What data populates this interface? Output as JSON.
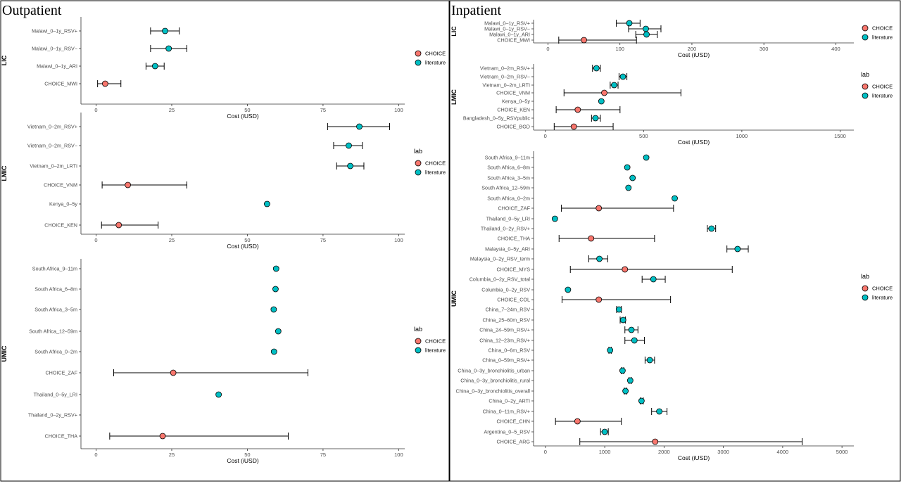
{
  "colors": {
    "CHOICE": "#F8766D",
    "literature": "#00BFC4",
    "axis": "#333333",
    "frame": "#000000"
  },
  "panels": [
    {
      "id": "outpatient",
      "title": "Outpatient",
      "charts": [
        {
          "type": "scatter",
          "strip": "LIC",
          "xlabel": "Cost (iUSD)",
          "xlim": [
            -5,
            102
          ],
          "xticks": [
            0,
            25,
            50,
            75,
            100
          ],
          "legend": {
            "title": "",
            "placement": "right",
            "entries": [
              "CHOICE",
              "literature"
            ]
          },
          "points": [
            {
              "label": "Malawi_0–1y_RSV+",
              "value": 22.8,
              "lo": 18,
              "hi": 27.5,
              "group": "literature"
            },
            {
              "label": "Malawi_0–1y_RSV−",
              "value": 24,
              "lo": 18,
              "hi": 30,
              "group": "literature"
            },
            {
              "label": "Malawi_0–1y_ARI",
              "value": 19.5,
              "lo": 16.5,
              "hi": 22.5,
              "group": "literature"
            },
            {
              "label": "CHOICE_MWI",
              "value": 3,
              "lo": 0.5,
              "hi": 8.2,
              "group": "CHOICE"
            }
          ]
        },
        {
          "type": "scatter",
          "strip": "LMIC",
          "xlabel": "Cost (iUSD)",
          "xlim": [
            -5,
            102
          ],
          "xticks": [
            0,
            25,
            50,
            75,
            100
          ],
          "legend": {
            "title": "lab",
            "placement": "right",
            "entries": [
              "CHOICE",
              "literature"
            ]
          },
          "points": [
            {
              "label": "Vietnam_0–2m_RSV+",
              "value": 87,
              "lo": 76.5,
              "hi": 97,
              "group": "literature"
            },
            {
              "label": "Vietnam_0–2m_RSV−",
              "value": 83.5,
              "lo": 78.5,
              "hi": 88,
              "group": "literature"
            },
            {
              "label": "Vietnam_0–2m_LRTI",
              "value": 84,
              "lo": 79.5,
              "hi": 88.5,
              "group": "literature"
            },
            {
              "label": "CHOICE_VNM",
              "value": 10.5,
              "lo": 2,
              "hi": 30,
              "group": "CHOICE"
            },
            {
              "label": "Kenya_0–5y",
              "value": 56.5,
              "lo": null,
              "hi": null,
              "group": "literature"
            },
            {
              "label": "CHOICE_KEN",
              "value": 7.5,
              "lo": 1.8,
              "hi": 20.5,
              "group": "CHOICE"
            }
          ]
        },
        {
          "type": "scatter",
          "strip": "UMIC",
          "xlabel": "Cost (iUSD)",
          "xlim": [
            -5,
            102
          ],
          "xticks": [
            0,
            25,
            50,
            75,
            100
          ],
          "legend": {
            "title": "lab",
            "placement": "right",
            "entries": [
              "CHOICE",
              "literature"
            ]
          },
          "points": [
            {
              "label": "South Africa_9–11m",
              "value": 59.5,
              "lo": null,
              "hi": null,
              "group": "literature"
            },
            {
              "label": "South Africa_6–8m",
              "value": 59.3,
              "lo": null,
              "hi": null,
              "group": "literature"
            },
            {
              "label": "South Africa_3–5m",
              "value": 58.7,
              "lo": null,
              "hi": null,
              "group": "literature"
            },
            {
              "label": "South Africa_12–59m",
              "value": 60.2,
              "lo": null,
              "hi": null,
              "group": "literature"
            },
            {
              "label": "South Africa_0–2m",
              "value": 58.8,
              "lo": null,
              "hi": null,
              "group": "literature"
            },
            {
              "label": "CHOICE_ZAF",
              "value": 25.5,
              "lo": 5.8,
              "hi": 70,
              "group": "CHOICE"
            },
            {
              "label": "Thailand_0–5y_LRI",
              "value": 40.5,
              "lo": null,
              "hi": null,
              "group": "literature"
            },
            {
              "label": "Thailand_0–2y_RSV+",
              "value": null,
              "lo": null,
              "hi": null,
              "group": "literature"
            },
            {
              "label": "CHOICE_THA",
              "value": 22,
              "lo": 4.5,
              "hi": 63.5,
              "group": "CHOICE"
            }
          ]
        }
      ]
    },
    {
      "id": "inpatient",
      "title": "Inpatient",
      "charts": [
        {
          "type": "scatter",
          "strip": "LIC",
          "xlabel": "Cost (iUSD)",
          "xlim": [
            -20,
            425
          ],
          "xticks": [
            0,
            100,
            200,
            300,
            400
          ],
          "legend": {
            "title": "",
            "placement": "right",
            "entries": [
              "CHOICE",
              "literature"
            ]
          },
          "points": [
            {
              "label": "Malawi_0–1y_RSV+",
              "value": 113,
              "lo": 95,
              "hi": 128,
              "group": "literature"
            },
            {
              "label": "Malawi_0–1y_RSV−",
              "value": 136,
              "lo": 112,
              "hi": 157,
              "group": "literature"
            },
            {
              "label": "Malawi_0–1y_ARI",
              "value": 137,
              "lo": 122,
              "hi": 152,
              "group": "literature"
            },
            {
              "label": "CHOICE_MWI",
              "value": 50,
              "lo": 15,
              "hi": 123,
              "group": "CHOICE"
            }
          ]
        },
        {
          "type": "scatter",
          "strip": "LMIC",
          "xlabel": "Cost (iUSD)",
          "xlim": [
            -60,
            1570
          ],
          "xticks": [
            0,
            500,
            1000,
            1500
          ],
          "legend": {
            "title": "lab",
            "placement": "right",
            "entries": [
              "CHOICE",
              "literature"
            ]
          },
          "points": [
            {
              "label": "Vietnam_0–2m_RSV+",
              "value": 260,
              "lo": 240,
              "hi": 280,
              "group": "literature"
            },
            {
              "label": "Vietnam_0–2m_RSV−",
              "value": 395,
              "lo": 375,
              "hi": 415,
              "group": "literature"
            },
            {
              "label": "Vietnam_0–2m_LRTI",
              "value": 350,
              "lo": 330,
              "hi": 370,
              "group": "literature"
            },
            {
              "label": "CHOICE_VNM",
              "value": 300,
              "lo": 95,
              "hi": 690,
              "group": "CHOICE"
            },
            {
              "label": "Kenya_0–5y",
              "value": 285,
              "lo": null,
              "hi": null,
              "group": "literature"
            },
            {
              "label": "CHOICE_KEN",
              "value": 165,
              "lo": 55,
              "hi": 380,
              "group": "CHOICE"
            },
            {
              "label": "Bangladesh_0–5y_RSVpublic",
              "value": 255,
              "lo": 235,
              "hi": 280,
              "group": "literature"
            },
            {
              "label": "CHOICE_BGD",
              "value": 145,
              "lo": 45,
              "hi": 345,
              "group": "CHOICE"
            }
          ]
        },
        {
          "type": "scatter",
          "strip": "UMIC",
          "xlabel": "Cost (iUSD)",
          "xlim": [
            -200,
            5200
          ],
          "xticks": [
            0,
            1000,
            2000,
            3000,
            4000,
            5000
          ],
          "legend": {
            "title": "lab",
            "placement": "right",
            "entries": [
              "CHOICE",
              "literature"
            ]
          },
          "points": [
            {
              "label": "South Africa_9–11m",
              "value": 1700,
              "lo": null,
              "hi": null,
              "group": "literature"
            },
            {
              "label": "South Africa_6–8m",
              "value": 1380,
              "lo": null,
              "hi": null,
              "group": "literature"
            },
            {
              "label": "South Africa_3–5m",
              "value": 1470,
              "lo": null,
              "hi": null,
              "group": "literature"
            },
            {
              "label": "South Africa_12–59m",
              "value": 1400,
              "lo": null,
              "hi": null,
              "group": "literature"
            },
            {
              "label": "South Africa_0–2m",
              "value": 2180,
              "lo": null,
              "hi": null,
              "group": "literature"
            },
            {
              "label": "CHOICE_ZAF",
              "value": 900,
              "lo": 270,
              "hi": 2160,
              "group": "CHOICE"
            },
            {
              "label": "Thailand_0–5y_LRI",
              "value": 160,
              "lo": null,
              "hi": null,
              "group": "literature"
            },
            {
              "label": "Thailand_0–2y_RSV+",
              "value": 2800,
              "lo": 2730,
              "hi": 2870,
              "group": "literature"
            },
            {
              "label": "CHOICE_THA",
              "value": 770,
              "lo": 230,
              "hi": 1840,
              "group": "CHOICE"
            },
            {
              "label": "Malaysia_0–5y_ARI",
              "value": 3240,
              "lo": 3060,
              "hi": 3420,
              "group": "literature"
            },
            {
              "label": "Malaysia_0–2y_RSV_term",
              "value": 910,
              "lo": 730,
              "hi": 1050,
              "group": "literature"
            },
            {
              "label": "CHOICE_MYS",
              "value": 1340,
              "lo": 420,
              "hi": 3150,
              "group": "CHOICE"
            },
            {
              "label": "Columbia_0–2y_RSV_total",
              "value": 1820,
              "lo": 1630,
              "hi": 2020,
              "group": "literature"
            },
            {
              "label": "Columbia_0–2y_RSV",
              "value": 380,
              "lo": null,
              "hi": null,
              "group": "literature"
            },
            {
              "label": "CHOICE_COL",
              "value": 900,
              "lo": 280,
              "hi": 2110,
              "group": "CHOICE"
            },
            {
              "label": "China_7–24m_RSV",
              "value": 1240,
              "lo": 1200,
              "hi": 1280,
              "group": "literature"
            },
            {
              "label": "China_25–60m_RSV",
              "value": 1310,
              "lo": 1260,
              "hi": 1350,
              "group": "literature"
            },
            {
              "label": "China_24–59m_RSV+",
              "value": 1450,
              "lo": 1340,
              "hi": 1560,
              "group": "literature"
            },
            {
              "label": "China_12–23m_RSV+",
              "value": 1500,
              "lo": 1340,
              "hi": 1670,
              "group": "literature"
            },
            {
              "label": "China_0–6m_RSV",
              "value": 1090,
              "lo": 1070,
              "hi": 1110,
              "group": "literature"
            },
            {
              "label": "China_0–59m_RSV+",
              "value": 1760,
              "lo": 1680,
              "hi": 1840,
              "group": "literature"
            },
            {
              "label": "China_0–3y_bronchiolitis_urban",
              "value": 1300,
              "lo": 1280,
              "hi": 1320,
              "group": "literature"
            },
            {
              "label": "China_0–3y_bronchiolitis_rural",
              "value": 1430,
              "lo": 1410,
              "hi": 1450,
              "group": "literature"
            },
            {
              "label": "China_0–3y_bronchiolitis_overall",
              "value": 1350,
              "lo": 1330,
              "hi": 1370,
              "group": "literature"
            },
            {
              "label": "China_0–2y_ARTI",
              "value": 1620,
              "lo": 1600,
              "hi": 1650,
              "group": "literature"
            },
            {
              "label": "China_0–11m_RSV+",
              "value": 1920,
              "lo": 1790,
              "hi": 2050,
              "group": "literature"
            },
            {
              "label": "CHOICE_CHN",
              "value": 540,
              "lo": 170,
              "hi": 1280,
              "group": "CHOICE"
            },
            {
              "label": "Argentina_0–5_RSV",
              "value": 1000,
              "lo": 930,
              "hi": 1060,
              "group": "literature"
            },
            {
              "label": "CHOICE_ARG",
              "value": 1850,
              "lo": 580,
              "hi": 4330,
              "group": "CHOICE"
            }
          ]
        }
      ]
    }
  ]
}
